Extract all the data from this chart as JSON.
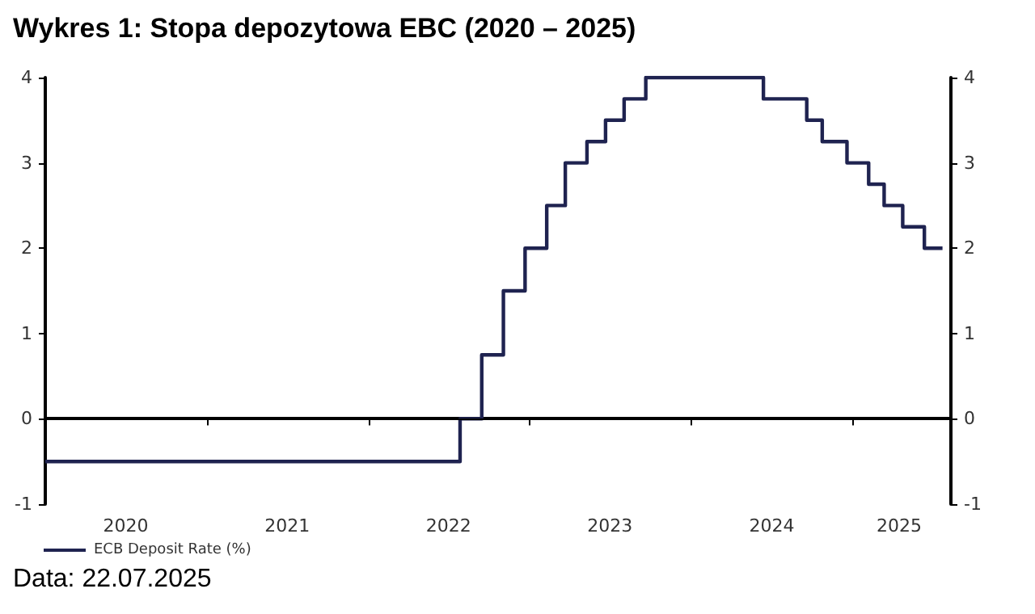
{
  "chart_data": {
    "type": "step",
    "title": "Wykres 1: Stopa depozytowa EBC (2020 – 2025)",
    "annotations": [
      "Data: 22.07.2025"
    ],
    "x": [
      "2020-01-01",
      "2022-07-27",
      "2022-09-14",
      "2022-11-02",
      "2022-12-21",
      "2023-02-08",
      "2023-03-22",
      "2023-05-10",
      "2023-06-21",
      "2023-08-02",
      "2023-09-20",
      "2024-06-12",
      "2024-09-18",
      "2024-10-23",
      "2024-12-18",
      "2025-02-05",
      "2025-03-12",
      "2025-04-23",
      "2025-06-11",
      "2025-07-22"
    ],
    "series": [
      {
        "name": "ECB Deposit Rate (%)",
        "color": "#1f2350",
        "values": [
          -0.5,
          0,
          0.75,
          1.5,
          2,
          2.5,
          3,
          3.25,
          3.5,
          3.75,
          4,
          3.75,
          3.5,
          3.25,
          3,
          2.75,
          2.5,
          2.25,
          2,
          2
        ]
      }
    ],
    "xlim": [
      "2020-01-01",
      "2025-08-10"
    ],
    "xticks": [
      {
        "value": "2020-07-01",
        "label": "2020"
      },
      {
        "value": "2021-01-01",
        "label": null
      },
      {
        "value": "2021-07-01",
        "label": "2021"
      },
      {
        "value": "2022-01-01",
        "label": null
      },
      {
        "value": "2022-07-01",
        "label": "2022"
      },
      {
        "value": "2023-01-01",
        "label": null
      },
      {
        "value": "2023-07-01",
        "label": "2023"
      },
      {
        "value": "2024-01-01",
        "label": null
      },
      {
        "value": "2024-07-01",
        "label": "2024"
      },
      {
        "value": "2025-01-01",
        "label": null
      },
      {
        "value": "2025-04-15",
        "label": "2025"
      }
    ],
    "ylim": [
      -1,
      4
    ],
    "yticks": [
      -1,
      0,
      1,
      2,
      3,
      4
    ],
    "y2lim": [
      -1,
      4
    ],
    "y2ticks": [
      -1,
      0,
      1,
      2,
      3,
      4
    ],
    "ref_lines": [
      {
        "axis": "y",
        "value": 0,
        "color": "#000000"
      }
    ],
    "grid": false,
    "legend": "bottom left",
    "marker": "none",
    "line_style": "solid"
  }
}
